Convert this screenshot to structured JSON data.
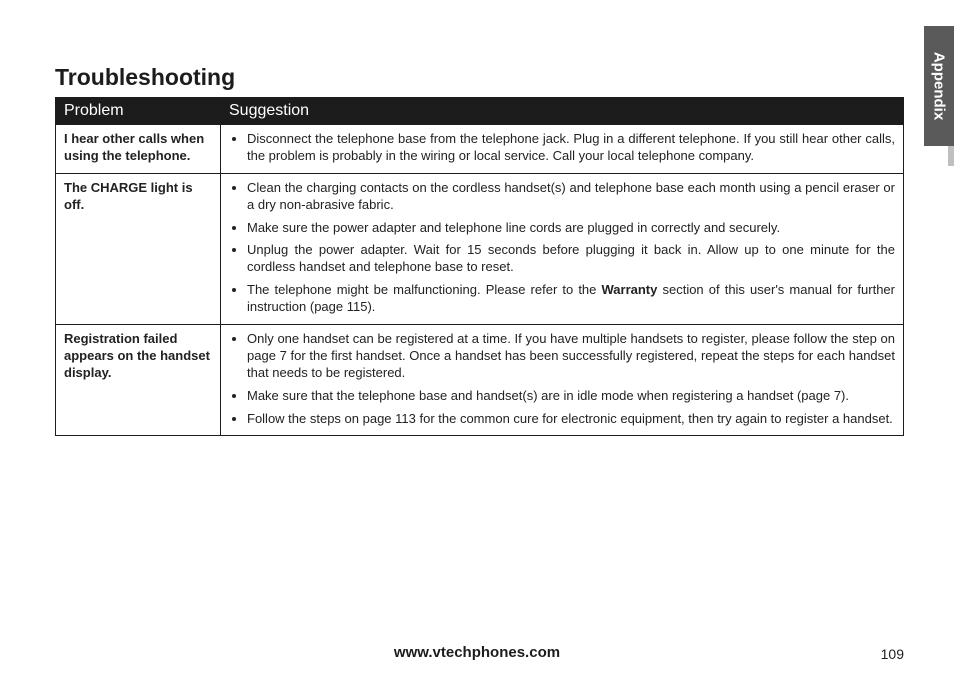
{
  "sideTab": {
    "label": "Appendix"
  },
  "title": "Troubleshooting",
  "table": {
    "headers": {
      "problem": "Problem",
      "suggestion": "Suggestion"
    },
    "rows": [
      {
        "problem": "I hear other calls when using the telephone.",
        "suggestions": [
          {
            "text": "Disconnect the telephone base from the telephone jack. Plug in a different telephone. If you still hear other calls, the problem is probably in the wiring or local service. Call your local telephone company."
          }
        ]
      },
      {
        "problem": "The CHARGE light is off.",
        "suggestions": [
          {
            "text": "Clean the charging contacts on the cordless handset(s) and telephone base each month using a pencil eraser or a dry non-abrasive fabric."
          },
          {
            "text": "Make sure the power adapter and telephone line cords are plugged in correctly and securely."
          },
          {
            "text": "Unplug the power adapter. Wait for 15 seconds before plugging it back in. Allow up to one minute for the cordless handset and telephone base to reset."
          },
          {
            "text_pre": "The telephone might be malfunctioning. Please refer to the ",
            "bold": "Warranty",
            "text_post": " section of this user's manual for further instruction (page 115)."
          }
        ]
      },
      {
        "problem": "Registration failed appears on the handset display.",
        "suggestions": [
          {
            "text": "Only one handset can be registered at a time. If you have multiple handsets to register, please follow the step on page 7 for the first handset. Once a handset has been successfully registered, repeat the steps for each handset that needs to be registered."
          },
          {
            "text": "Make sure that the telephone base and handset(s) are in idle mode when registering a handset (page 7)."
          },
          {
            "text": "Follow the steps on page 113 for the common cure for electronic equipment, then try again to register a handset."
          }
        ]
      }
    ]
  },
  "footer": {
    "url": "www.vtechphones.com",
    "page": "109"
  },
  "colors": {
    "header_bg": "#1c1c1c",
    "header_fg": "#ffffff",
    "border": "#1c1c1c",
    "sidetab_bg": "#5a5a5a",
    "sidetab_fg": "#ffffff",
    "body_text": "#222222"
  }
}
